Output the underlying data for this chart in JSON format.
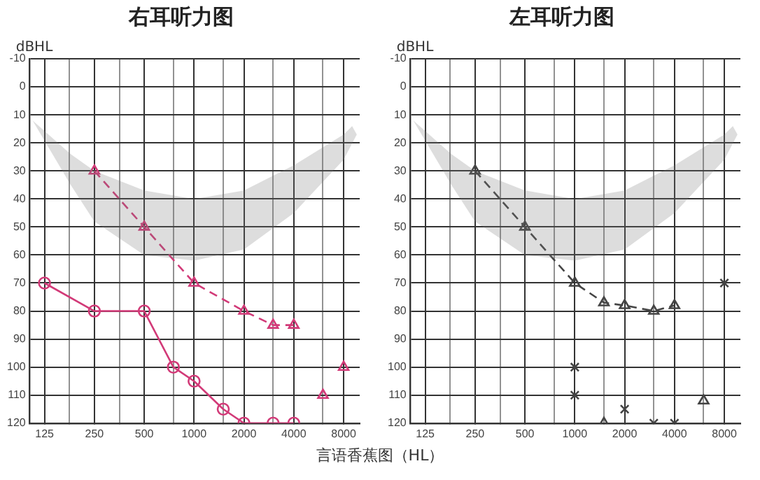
{
  "chart_data": [
    {
      "type": "line",
      "title": "右耳听力图",
      "ylabel": "dBHL",
      "log": "x",
      "xlim": [
        102,
        10000
      ],
      "ylim": [
        120,
        -10
      ],
      "xticks": [
        125,
        {
          "value": 177,
          "label": null
        },
        250,
        {
          "value": 354,
          "label": null
        },
        500,
        {
          "value": 750,
          "label": null
        },
        1000,
        {
          "value": 1500,
          "label": null
        },
        2000,
        {
          "value": 3000,
          "label": null
        },
        4000,
        {
          "value": 6000,
          "label": null
        },
        8000
      ],
      "yticks": [
        -10,
        0,
        10,
        20,
        30,
        40,
        50,
        60,
        70,
        80,
        90,
        100,
        110,
        120
      ],
      "grid": true,
      "legend": false,
      "series": [
        {
          "type": "line",
          "color": "#d23a78",
          "marker": "circle",
          "line_style": "solid",
          "x": [
            125,
            250,
            500,
            750,
            1000,
            1500,
            2000,
            3000,
            4000
          ],
          "values": [
            70,
            80,
            80,
            100,
            105,
            115,
            120,
            120,
            120
          ]
        },
        {
          "type": "line",
          "color": "#d23a78",
          "marker": "triangle",
          "line_style": "dashed",
          "x": [
            250,
            500,
            1000,
            2000,
            3000,
            4000
          ],
          "values": [
            30,
            50,
            70,
            80,
            85,
            85
          ]
        },
        {
          "type": "scatter",
          "color": "#d23a78",
          "marker": "triangle",
          "x": [
            6000,
            8000
          ],
          "values": [
            110,
            100
          ]
        }
      ]
    },
    {
      "type": "line",
      "title": "左耳听力图",
      "ylabel": "dBHL",
      "xlabel": "言语香蕉图（HL）",
      "log": "x",
      "xlim": [
        102,
        10000
      ],
      "ylim": [
        120,
        -10
      ],
      "xticks": [
        125,
        {
          "value": 177,
          "label": null
        },
        250,
        {
          "value": 354,
          "label": null
        },
        500,
        {
          "value": 750,
          "label": null
        },
        1000,
        {
          "value": 1500,
          "label": null
        },
        2000,
        {
          "value": 3000,
          "label": null
        },
        4000,
        {
          "value": 6000,
          "label": null
        },
        8000
      ],
      "yticks": [
        -10,
        0,
        10,
        20,
        30,
        40,
        50,
        60,
        70,
        80,
        90,
        100,
        110,
        120
      ],
      "grid": true,
      "legend": false,
      "series": [
        {
          "type": "line",
          "color": "#444444",
          "marker": "triangle",
          "line_style": "dashed",
          "x": [
            250,
            500,
            1000,
            1500,
            2000,
            3000,
            4000
          ],
          "values": [
            30,
            50,
            70,
            77,
            78,
            80,
            78
          ]
        },
        {
          "type": "scatter",
          "color": "#444444",
          "marker": "cross",
          "x": [
            1000,
            1000,
            2000,
            3000,
            4000,
            8000
          ],
          "values": [
            100,
            110,
            115,
            120,
            120,
            70
          ]
        },
        {
          "type": "scatter",
          "color": "#444444",
          "marker": "triangle",
          "x": [
            1500,
            6000
          ],
          "values": [
            120,
            112
          ]
        }
      ]
    }
  ]
}
